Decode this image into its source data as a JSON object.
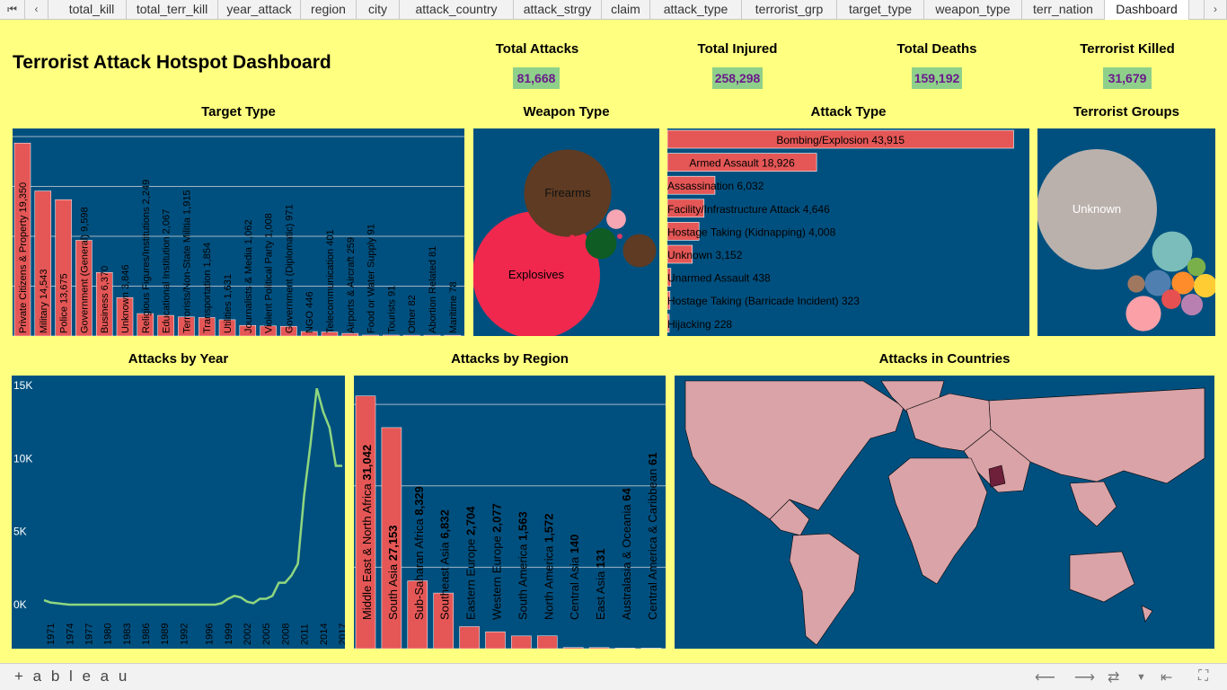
{
  "tabs": [
    "total_kill",
    "total_terr_kill",
    "year_attack",
    "region",
    "city",
    "attack_country",
    "attack_strgy",
    "claim",
    "attack_type",
    "terrorist_grp",
    "target_type",
    "weapon_type",
    "terr_nation",
    "Dashboard"
  ],
  "active_tab": "Dashboard",
  "nav": {
    "first": "⏮",
    "prev": "‹",
    "next": "›"
  },
  "dashboard_title": "Terrorist Attack Hotspot Dashboard",
  "kpis": [
    {
      "label": "Total Attacks",
      "value": "81,668"
    },
    {
      "label": "Total Injured",
      "value": "258,298"
    },
    {
      "label": "Total Deaths",
      "value": "159,192"
    },
    {
      "label": "Terrorist Killed",
      "value": "31,679"
    }
  ],
  "panels": {
    "target": "Target Type",
    "weapon": "Weapon Type",
    "attack": "Attack Type",
    "groups": "Terrorist Groups",
    "year": "Attacks by Year",
    "region": "Attacks by Region",
    "countries": "Attacks in Countries"
  },
  "colors": {
    "bg": "#ffff80",
    "panel": "#00507f",
    "bar": "#e45756",
    "line": "#8fd77f",
    "kpi": "#8ed08a",
    "kpi_text": "#6b1a8a"
  },
  "chart_data": [
    {
      "type": "bar",
      "title": "Target Type",
      "categories": [
        "Private Citizens & Property",
        "Military",
        "Police",
        "Government (General)",
        "Business",
        "Unknown",
        "Religious Figures/Institutions",
        "Educational Institution",
        "Terrorists/Non-State Militia",
        "Transportation",
        "Utilities",
        "Journalists & Media",
        "Violent Political Party",
        "Government (Diplomatic)",
        "NGO",
        "Telecommunication",
        "Airports & Aircraft",
        "Food or Water Supply",
        "Tourists",
        "Other",
        "Abortion Related",
        "Maritime"
      ],
      "values": [
        19350,
        14543,
        13675,
        9598,
        6370,
        3846,
        2249,
        2067,
        1915,
        1854,
        1631,
        1062,
        1008,
        971,
        446,
        401,
        259,
        91,
        91,
        82,
        81,
        78
      ],
      "labels": [
        "Private Citizens & Property 19,350",
        "Military 14,543",
        "Police 13,675",
        "Government (General) 9,598",
        "Business 6,370",
        "Unknown 3,846",
        "Religious Figures/Institutions 2,249",
        "Educational Institution 2,067",
        "Terrorists/Non-State Militia 1,915",
        "Transportation 1,854",
        "Utilities 1,631",
        "Journalists & Media 1,062",
        "Violent Political Party 1,008",
        "Government (Diplomatic) 971",
        "NGO 446",
        "Telecommunication 401",
        "Airports & Aircraft 259",
        "Food or Water Supply 91",
        "Tourists 91",
        "Other 82",
        "Abortion Related 81",
        "Maritime 78"
      ]
    },
    {
      "type": "bubble",
      "title": "Weapon Type",
      "bubbles": [
        {
          "label": "Explosives",
          "value": 47000,
          "color": "#f0284e"
        },
        {
          "label": "Firearms",
          "value": 22000,
          "color": "#5e3b22"
        },
        {
          "label": "",
          "value": 3200,
          "color": "#5e3b22"
        },
        {
          "label": "",
          "value": 2800,
          "color": "#0f5c24"
        },
        {
          "label": "",
          "value": 1100,
          "color": "#f5a6b2"
        },
        {
          "label": "",
          "value": 120,
          "color": "#f0284e"
        },
        {
          "label": "",
          "value": 80,
          "color": "#d93a63"
        }
      ]
    },
    {
      "type": "bar",
      "title": "Attack Type",
      "categories": [
        "Bombing/Explosion",
        "Armed Assault",
        "Assassination",
        "Facility/Infrastructure Attack",
        "Hostage Taking (Kidnapping)",
        "Unknown",
        "Unarmed Assault",
        "Hostage Taking (Barricade Incident)",
        "Hijacking"
      ],
      "values": [
        43915,
        18926,
        6032,
        4646,
        4008,
        3152,
        438,
        323,
        228
      ],
      "labels": [
        "Bombing/Explosion 43,915",
        "Armed Assault 18,926",
        "Assassination 6,032",
        "Facility/Infrastructure Attack 4,646",
        "Hostage Taking (Kidnapping) 4,008",
        "Unknown 3,152",
        "Unarmed Assault 438",
        "Hostage Taking (Barricade Incident) 323",
        "Hijacking 228"
      ]
    },
    {
      "type": "bubble",
      "title": "Terrorist Groups",
      "bubbles": [
        {
          "label": "Unknown",
          "value": 34000,
          "color": "#bbb1ac"
        },
        {
          "label": "",
          "value": 3800,
          "color": "#7bbdba"
        },
        {
          "label": "",
          "value": 2900,
          "color": "#fca0a8"
        },
        {
          "label": "",
          "value": 1600,
          "color": "#4f7fb0"
        },
        {
          "label": "",
          "value": 1300,
          "color": "#ffcc33"
        },
        {
          "label": "",
          "value": 1200,
          "color": "#ff8c2a"
        },
        {
          "label": "",
          "value": 1100,
          "color": "#b880b0"
        },
        {
          "label": "",
          "value": 900,
          "color": "#e65050"
        },
        {
          "label": "",
          "value": 800,
          "color": "#7ab04a"
        },
        {
          "label": "",
          "value": 700,
          "color": "#a07860"
        }
      ]
    },
    {
      "type": "line",
      "title": "Attacks by Year",
      "x": [
        1970,
        1971,
        1972,
        1973,
        1974,
        1975,
        1976,
        1977,
        1978,
        1979,
        1980,
        1981,
        1982,
        1983,
        1984,
        1985,
        1986,
        1987,
        1988,
        1989,
        1990,
        1991,
        1992,
        1993,
        1994,
        1995,
        1996,
        1997,
        1998,
        1999,
        2000,
        2001,
        2002,
        2003,
        2004,
        2005,
        2006,
        2007,
        2008,
        2009,
        2010,
        2011,
        2012,
        2013,
        2014,
        2015,
        2016,
        2017
      ],
      "y": [
        300,
        150,
        100,
        40,
        0,
        0,
        0,
        0,
        0,
        0,
        0,
        0,
        0,
        0,
        0,
        0,
        0,
        0,
        0,
        0,
        0,
        0,
        0,
        0,
        0,
        0,
        0,
        0,
        100,
        400,
        600,
        500,
        200,
        100,
        400,
        400,
        600,
        1500,
        1500,
        2000,
        2800,
        7500,
        11000,
        14800,
        13200,
        12100,
        9500,
        9500
      ],
      "ylim": [
        0,
        15000
      ],
      "yticks": [
        "0K",
        "5K",
        "10K",
        "15K"
      ],
      "xticks": [
        "1971",
        "1974",
        "1977",
        "1980",
        "1983",
        "1986",
        "1989",
        "1992",
        "1996",
        "1999",
        "2002",
        "2005",
        "2008",
        "2011",
        "2014",
        "2017"
      ]
    },
    {
      "type": "bar",
      "title": "Attacks by Region",
      "categories": [
        "Middle East & North Africa",
        "South Asia",
        "Sub-Saharan Africa",
        "Southeast Asia",
        "Eastern Europe",
        "Western Europe",
        "South America",
        "North America",
        "Central Asia",
        "East Asia",
        "Australasia & Oceania",
        "Central America & Caribbean"
      ],
      "values": [
        31042,
        27153,
        8329,
        6832,
        2704,
        2077,
        1563,
        1572,
        140,
        131,
        64,
        61
      ],
      "names": [
        "Middle East & North Africa",
        "South Asia",
        "Sub-Saharan Africa",
        "Southeast Asia",
        "Eastern Europe",
        "Western Europe",
        "South America",
        "North America",
        "Central Asia",
        "East Asia",
        "Australasia & Oceania",
        "Central America & Caribbean"
      ],
      "value_labels": [
        "31,042",
        "27,153",
        "8,329",
        "6,832",
        "2,704",
        "2,077",
        "1,563",
        "1,572",
        "140",
        "131",
        "64",
        "61"
      ]
    },
    {
      "type": "map",
      "title": "Attacks in Countries"
    }
  ],
  "footer": {
    "brand": "+ a b l e a u"
  }
}
